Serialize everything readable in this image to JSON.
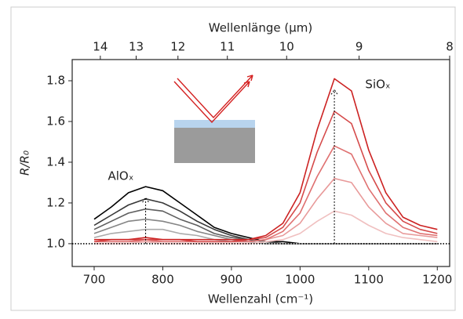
{
  "chart_data": {
    "type": "line",
    "xlabel": "Wellenzahl (cm⁻¹)",
    "x2label": "Wellenlänge (µm)",
    "ylabel": "R/R₀",
    "x": [
      700,
      725,
      750,
      775,
      800,
      825,
      850,
      875,
      900,
      925,
      950,
      975,
      1000,
      1025,
      1050,
      1075,
      1100,
      1125,
      1150,
      1175,
      1200
    ],
    "xlim": [
      668,
      1218
    ],
    "xticks": [
      700,
      800,
      900,
      1000,
      1100,
      1200
    ],
    "x2lim": [
      14.9,
      8
    ],
    "x2scale": "reciprocal",
    "x2ticks": [
      14,
      13,
      12,
      11,
      10,
      9,
      8
    ],
    "ylim": [
      0.888,
      1.904
    ],
    "yticks": [
      {
        "value": 1,
        "label": "1.0"
      },
      {
        "value": 1.2,
        "label": "1.2"
      },
      {
        "value": 1.4,
        "label": "1.4"
      },
      {
        "value": 1.6,
        "label": "1.6"
      },
      {
        "value": 1.8,
        "label": "1.8"
      }
    ],
    "reference_line": 1,
    "annotations": [
      {
        "text": "AlOₓ",
        "x": 720,
        "y": 1.33,
        "color": "#000000"
      },
      {
        "text": "SiOₓ",
        "x": 1095,
        "y": 1.78,
        "color": "#d42020"
      }
    ],
    "series": [
      {
        "color": "#000000",
        "values": [
          1.12,
          1.18,
          1.25,
          1.28,
          1.26,
          1.2,
          1.14,
          1.08,
          1.05,
          1.03,
          1.01,
          1.01,
          1.0,
          1.0,
          1.0,
          1.0,
          1.0,
          1.0,
          1.0,
          1.0,
          1.0
        ]
      },
      {
        "color": "#383838",
        "values": [
          1.09,
          1.14,
          1.19,
          1.22,
          1.2,
          1.16,
          1.11,
          1.07,
          1.04,
          1.02,
          1.01,
          1.0,
          1.0,
          1.0,
          1.0,
          1.0,
          1.0,
          1.0,
          1.0,
          1.0,
          1.0
        ]
      },
      {
        "color": "#5e5e5e",
        "values": [
          1.07,
          1.11,
          1.15,
          1.17,
          1.16,
          1.12,
          1.09,
          1.05,
          1.03,
          1.02,
          1.01,
          1.0,
          1.0,
          1.0,
          1.0,
          1.0,
          1.0,
          1.0,
          1.0,
          1.0,
          1.0
        ]
      },
      {
        "color": "#858585",
        "values": [
          1.05,
          1.08,
          1.11,
          1.12,
          1.11,
          1.09,
          1.06,
          1.04,
          1.02,
          1.01,
          1.0,
          1.0,
          1.0,
          1.0,
          1.0,
          1.0,
          1.0,
          1.0,
          1.0,
          1.0,
          1.0
        ]
      },
      {
        "color": "#aaaaaa",
        "values": [
          1.03,
          1.05,
          1.06,
          1.07,
          1.07,
          1.05,
          1.04,
          1.02,
          1.01,
          1.01,
          1.0,
          1.0,
          1.0,
          1.0,
          1.0,
          1.0,
          1.0,
          1.0,
          1.0,
          1.0,
          1.0
        ]
      },
      {
        "color": "#f0c0c0",
        "values": [
          1.0,
          1.0,
          1.0,
          1.01,
          1.0,
          1.0,
          1.0,
          1.0,
          1.0,
          1.0,
          1.01,
          1.02,
          1.05,
          1.11,
          1.16,
          1.14,
          1.09,
          1.05,
          1.03,
          1.02,
          1.01
        ]
      },
      {
        "color": "#e89a9a",
        "values": [
          1.01,
          1.01,
          1.01,
          1.01,
          1.01,
          1.01,
          1.01,
          1.01,
          1.01,
          1.01,
          1.02,
          1.04,
          1.1,
          1.22,
          1.32,
          1.3,
          1.18,
          1.1,
          1.05,
          1.04,
          1.03
        ]
      },
      {
        "color": "#df7070",
        "values": [
          1.01,
          1.01,
          1.01,
          1.02,
          1.01,
          1.01,
          1.01,
          1.01,
          1.01,
          1.01,
          1.02,
          1.06,
          1.15,
          1.33,
          1.48,
          1.44,
          1.27,
          1.15,
          1.08,
          1.05,
          1.04
        ]
      },
      {
        "color": "#d54a4a",
        "values": [
          1.01,
          1.02,
          1.02,
          1.02,
          1.02,
          1.02,
          1.01,
          1.01,
          1.01,
          1.02,
          1.03,
          1.08,
          1.2,
          1.45,
          1.65,
          1.59,
          1.36,
          1.2,
          1.11,
          1.07,
          1.05
        ]
      },
      {
        "color": "#cc2222",
        "values": [
          1.02,
          1.02,
          1.02,
          1.03,
          1.02,
          1.02,
          1.02,
          1.02,
          1.02,
          1.02,
          1.04,
          1.1,
          1.25,
          1.56,
          1.81,
          1.75,
          1.46,
          1.25,
          1.13,
          1.09,
          1.07
        ]
      }
    ]
  }
}
